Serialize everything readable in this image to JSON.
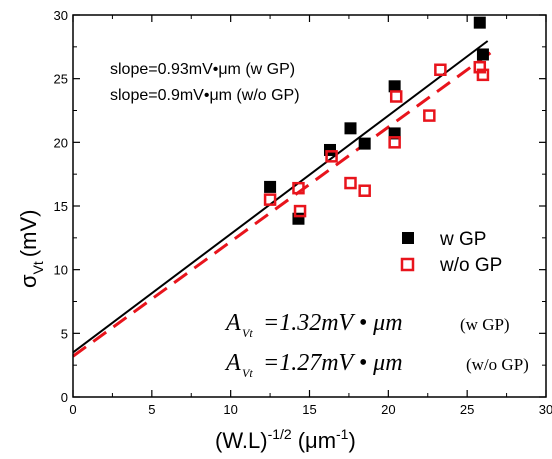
{
  "chart_data": {
    "type": "scatter",
    "xlabel_main": "(W.L)",
    "xlabel_sup": "-1/2",
    "xlabel_unit": "(μm",
    "xlabel_unit_sup": "-1",
    "xlabel_close": ")",
    "ylabel_main": "σ",
    "ylabel_sub": "Vt",
    "ylabel_unit": "(mV)",
    "xlim": [
      0,
      30
    ],
    "ylim": [
      0,
      30
    ],
    "xticks": [
      "0",
      "5",
      "10",
      "15",
      "20",
      "25",
      "30"
    ],
    "yticks": [
      "0",
      "5",
      "10",
      "15",
      "20",
      "25",
      "30"
    ],
    "grid": false,
    "legend_position": "right",
    "annotations": {
      "slope_wgp": "slope=0.93mV•μm (w GP)",
      "slope_wogp": "slope=0.9mV•μm (w/o GP)",
      "avt_wgp_symbol": "A",
      "avt_wgp_sub": "Vt",
      "avt_wgp_value": "=1.32mV • μm",
      "avt_wgp_tag": "(w GP)",
      "avt_wogp_symbol": "A",
      "avt_wogp_sub": "Vt",
      "avt_wogp_value": "=1.27mV • μm",
      "avt_wogp_tag": "(w/o GP)"
    },
    "series": [
      {
        "name": "w GP",
        "marker": "filled-square",
        "color": "#000000",
        "points": [
          [
            12.5,
            16.5
          ],
          [
            14.3,
            14.0
          ],
          [
            16.3,
            19.4
          ],
          [
            17.6,
            21.1
          ],
          [
            18.5,
            19.9
          ],
          [
            20.4,
            24.4
          ],
          [
            20.4,
            20.7
          ],
          [
            25.8,
            29.4
          ],
          [
            26.0,
            26.9
          ]
        ],
        "fit": {
          "intercept": 3.5,
          "slope": 0.93,
          "x_range": [
            0,
            26.3
          ],
          "style": "solid"
        }
      },
      {
        "name": "w/o GP",
        "marker": "open-square",
        "color": "#e8141c",
        "points": [
          [
            12.5,
            15.5
          ],
          [
            14.3,
            16.4
          ],
          [
            14.4,
            14.6
          ],
          [
            16.4,
            18.9
          ],
          [
            17.6,
            16.8
          ],
          [
            18.5,
            16.2
          ],
          [
            20.4,
            20.0
          ],
          [
            20.5,
            23.6
          ],
          [
            22.6,
            22.1
          ],
          [
            23.3,
            25.7
          ],
          [
            25.8,
            25.9
          ],
          [
            26.0,
            25.3
          ]
        ],
        "fit": {
          "intercept": 3.2,
          "slope": 0.9,
          "x_range": [
            0,
            26.9
          ],
          "style": "dashed"
        }
      }
    ]
  }
}
